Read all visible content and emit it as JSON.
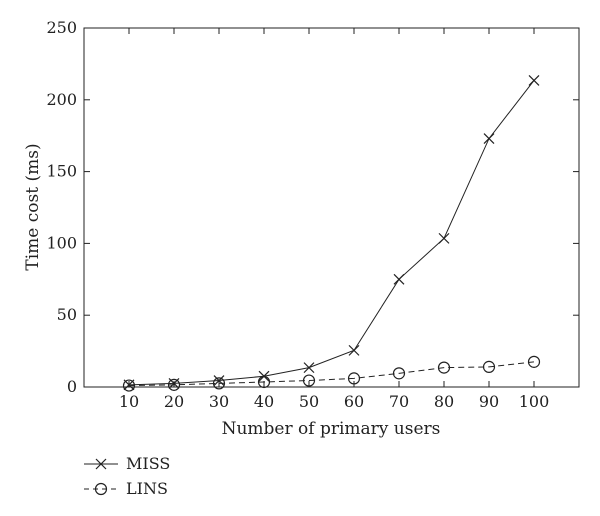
{
  "chart_data": {
    "type": "line",
    "xlabel": "Number of primary users",
    "ylabel": "Time cost (ms)",
    "x": [
      10,
      20,
      30,
      40,
      50,
      60,
      70,
      80,
      90,
      100
    ],
    "xlim": [
      0,
      110
    ],
    "ylim": [
      0,
      250
    ],
    "xticks": [
      "10",
      "20",
      "30",
      "40",
      "50",
      "60",
      "70",
      "80",
      "90",
      "100"
    ],
    "yticks": [
      "0",
      "50",
      "100",
      "150",
      "200",
      "250"
    ],
    "grid": false,
    "legend_position": "below-left",
    "series": [
      {
        "name": "MISS",
        "marker": "x-icon",
        "line_style": "solid",
        "color": "#222222",
        "values": [
          1.5,
          2.5,
          4.5,
          7.5,
          13.5,
          25.5,
          75,
          103.5,
          173,
          213.5
        ]
      },
      {
        "name": "LINS",
        "marker": "circle-icon",
        "line_style": "dashed",
        "color": "#222222",
        "values": [
          1,
          1.5,
          2.5,
          3.5,
          4.5,
          6,
          9.5,
          13.5,
          14,
          17.5
        ]
      }
    ]
  }
}
